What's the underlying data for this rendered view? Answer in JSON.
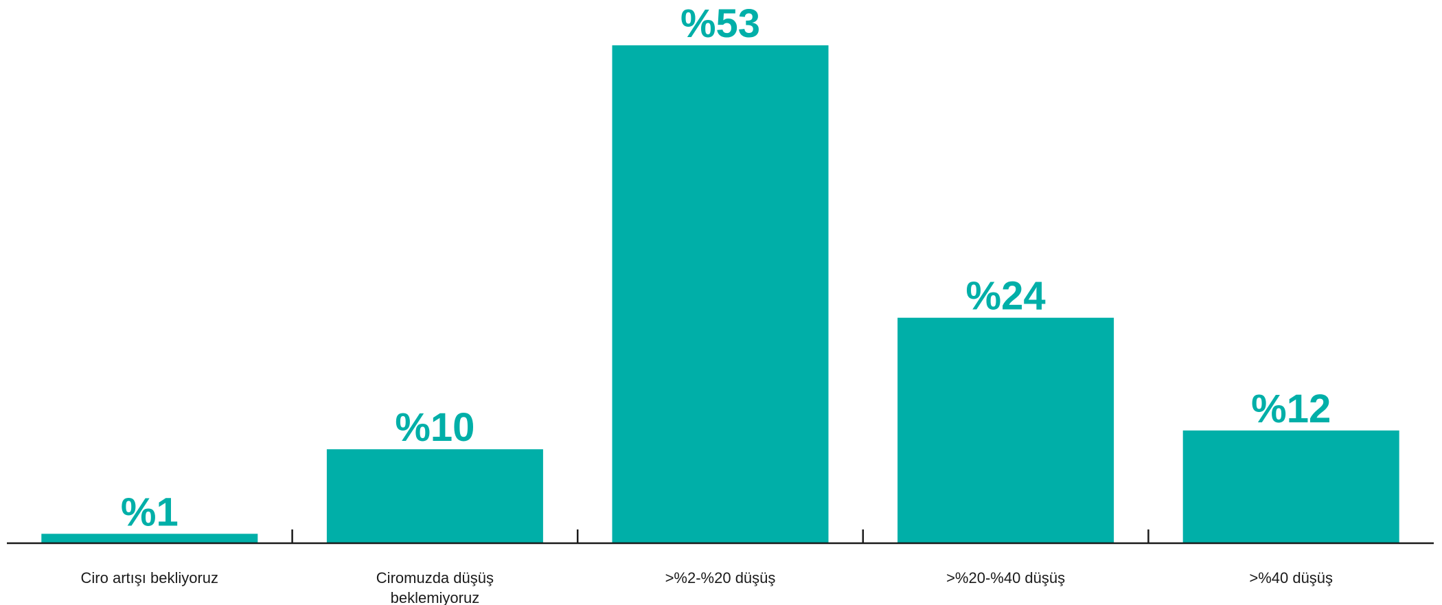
{
  "chart_data": {
    "type": "bar",
    "categories": [
      [
        "Ciro artışı bekliyoruz"
      ],
      [
        "Ciromuzda düşüş",
        "beklemiyoruz"
      ],
      [
        ">%2-%20 düşüş"
      ],
      [
        ">%20-%40 düşüş"
      ],
      [
        ">%40 düşüş"
      ]
    ],
    "values": [
      1,
      10,
      53,
      24,
      12
    ],
    "value_labels": [
      "%1",
      "%10",
      "%53",
      "%24",
      "%12"
    ],
    "title": "",
    "xlabel": "",
    "ylabel": "",
    "ylim": [
      0,
      53
    ],
    "grid": false,
    "legend": "none",
    "colors": {
      "bar": "#00AFA8",
      "value_label": "#00AFA8",
      "axis": "#1a1a1a"
    }
  }
}
